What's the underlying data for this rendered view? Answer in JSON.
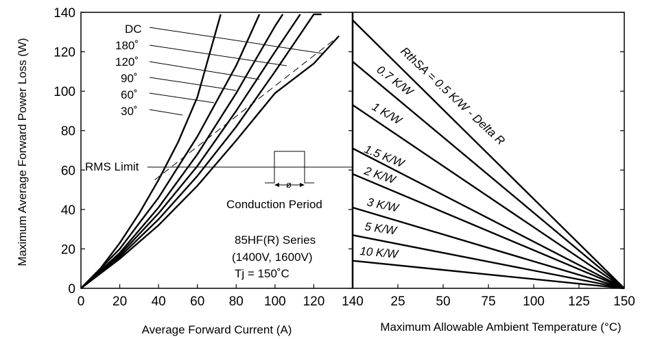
{
  "chart_data": [
    {
      "type": "line",
      "panel": "left",
      "title": "",
      "xlabel": "Average Forward Current (A)",
      "ylabel": "Maximum Average Forward Power Loss (W)",
      "xlim": [
        0,
        140
      ],
      "ylim": [
        0,
        140
      ],
      "xticks": [
        0,
        20,
        40,
        60,
        80,
        100,
        120,
        140
      ],
      "yticks": [
        0,
        20,
        40,
        60,
        80,
        100,
        120,
        140
      ],
      "grid": false,
      "series": [
        {
          "name": "30˚",
          "x": [
            0,
            10,
            20,
            30,
            40,
            50,
            60,
            72
          ],
          "y": [
            0,
            10,
            23,
            38,
            55,
            74,
            97,
            139
          ]
        },
        {
          "name": "60˚",
          "x": [
            0,
            20,
            40,
            60,
            80,
            92
          ],
          "y": [
            0,
            20,
            46,
            77,
            113,
            139
          ]
        },
        {
          "name": "90˚",
          "x": [
            0,
            20,
            40,
            60,
            80,
            100,
            104
          ],
          "y": [
            0,
            18,
            41,
            68,
            99,
            133,
            139
          ]
        },
        {
          "name": "120˚",
          "x": [
            0,
            20,
            40,
            60,
            80,
            100,
            113
          ],
          "y": [
            0,
            17,
            38,
            62,
            90,
            120,
            139
          ]
        },
        {
          "name": "180˚",
          "x": [
            0,
            20,
            40,
            60,
            80,
            100,
            120,
            124
          ],
          "y": [
            0,
            16,
            35,
            57,
            82,
            110,
            139,
            139
          ]
        },
        {
          "name": "DC",
          "x": [
            0,
            20,
            40,
            60,
            80,
            100,
            120,
            133
          ],
          "y": [
            0,
            15,
            32,
            52,
            75,
            99,
            114,
            128
          ]
        },
        {
          "name": "RMS Limit",
          "x": [
            38,
            133
          ],
          "y": [
            55,
            128
          ]
        }
      ],
      "legend_labels": [
        "DC",
        "180˚",
        "120˚",
        "90˚",
        "60˚",
        "30˚"
      ],
      "annotations": {
        "rms_limit": "RMS Limit",
        "conduction_period": "Conduction Period",
        "phi": "ø",
        "series_line1": "85HF(R) Series",
        "series_line2": "(1400V, 1600V)",
        "series_line3": "Tj = 150˚C"
      }
    },
    {
      "type": "line",
      "panel": "right",
      "title": "",
      "xlabel": "Maximum Allowable Ambient Temperature (°C)",
      "ylabel": "",
      "xticks": [
        "140",
        "25",
        "50",
        "75",
        "100",
        "125",
        "150"
      ],
      "xlim": [
        0,
        150
      ],
      "ylim": [
        0,
        140
      ],
      "grid": false,
      "series": [
        {
          "name": "RthSA = 0.5 K/W - Delta R",
          "x": [
            0,
            150
          ],
          "y": [
            136,
            0
          ]
        },
        {
          "name": "0.7 K/W",
          "x": [
            0,
            150
          ],
          "y": [
            115,
            0
          ]
        },
        {
          "name": "1 K/W",
          "x": [
            0,
            150
          ],
          "y": [
            93,
            0
          ]
        },
        {
          "name": "1.5 K/W",
          "x": [
            0,
            150
          ],
          "y": [
            71,
            0
          ]
        },
        {
          "name": "2 K/W",
          "x": [
            0,
            150
          ],
          "y": [
            58,
            0
          ]
        },
        {
          "name": "3 K/W",
          "x": [
            0,
            150
          ],
          "y": [
            41,
            0
          ]
        },
        {
          "name": "5 K/W",
          "x": [
            0,
            150
          ],
          "y": [
            27,
            0
          ]
        },
        {
          "name": "10 K/W",
          "x": [
            0,
            150
          ],
          "y": [
            14,
            0
          ]
        }
      ]
    }
  ]
}
